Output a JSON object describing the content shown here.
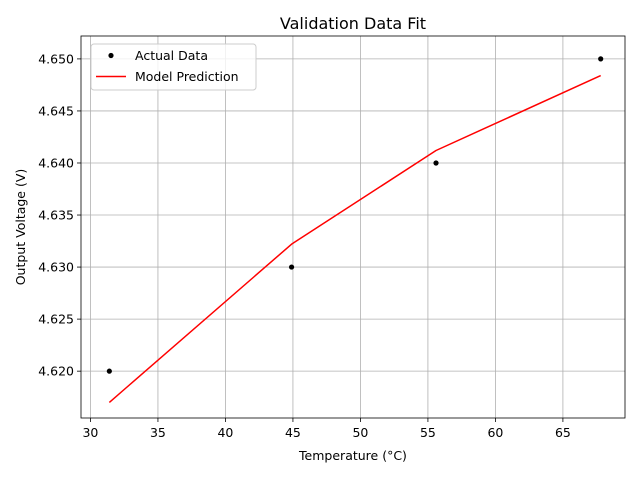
{
  "chart_data": {
    "type": "line",
    "title": "Validation Data Fit",
    "xlabel": "Temperature (°C)",
    "ylabel": "Output Voltage (V)",
    "xlim": [
      29.3,
      69.6
    ],
    "ylim": [
      4.6155,
      4.6522
    ],
    "xticks": [
      30,
      35,
      40,
      45,
      50,
      55,
      60,
      65
    ],
    "yticks": [
      4.62,
      4.625,
      4.63,
      4.635,
      4.64,
      4.645,
      4.65
    ],
    "ytick_labels": [
      "4.620",
      "4.625",
      "4.630",
      "4.635",
      "4.640",
      "4.645",
      "4.650"
    ],
    "grid": true,
    "legend_position": "top-left",
    "series": [
      {
        "name": "Actual Data",
        "style": "markers",
        "color": "#000000",
        "x": [
          31.4,
          44.9,
          55.6,
          67.8
        ],
        "y": [
          4.62,
          4.63,
          4.64,
          4.65
        ]
      },
      {
        "name": "Model Prediction",
        "style": "line",
        "color": "#ff0000",
        "x": [
          31.4,
          44.9,
          55.6,
          67.8
        ],
        "y": [
          4.617,
          4.6322,
          4.6412,
          4.6484
        ]
      }
    ]
  }
}
